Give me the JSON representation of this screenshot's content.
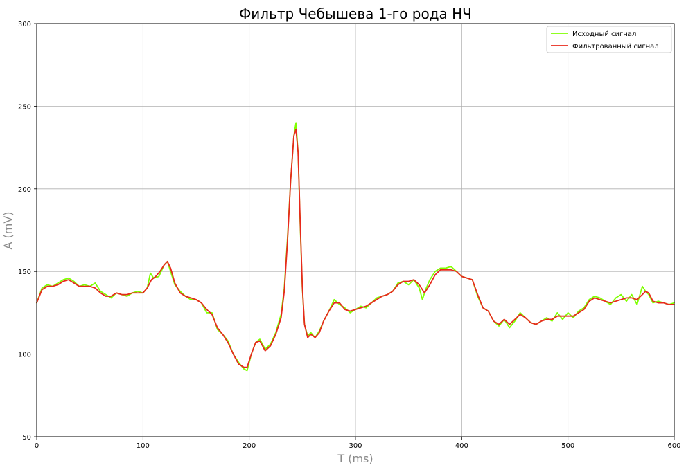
{
  "chart_data": {
    "type": "line",
    "title": "Фильтр Чебышева 1-го рода НЧ",
    "xlabel": "T (ms)",
    "ylabel": "A (mV)",
    "xlim": [
      0,
      600
    ],
    "ylim": [
      50,
      300
    ],
    "xticks": [
      0,
      100,
      200,
      300,
      400,
      500,
      600
    ],
    "yticks": [
      50,
      100,
      150,
      200,
      250,
      300
    ],
    "grid": true,
    "legend_position": "top-right",
    "series": [
      {
        "name": "Исходный сигнал",
        "color": "#7fff00",
        "x": [
          0,
          5,
          10,
          15,
          20,
          25,
          30,
          35,
          40,
          45,
          50,
          55,
          60,
          65,
          70,
          75,
          80,
          85,
          90,
          95,
          100,
          104,
          107,
          110,
          115,
          120,
          123,
          126,
          130,
          135,
          140,
          145,
          150,
          155,
          160,
          165,
          170,
          175,
          180,
          185,
          190,
          195,
          198,
          202,
          206,
          210,
          215,
          220,
          225,
          230,
          233,
          236,
          239,
          242,
          244,
          246,
          248,
          250,
          252,
          255,
          258,
          262,
          266,
          270,
          275,
          280,
          285,
          290,
          295,
          300,
          305,
          310,
          315,
          320,
          325,
          330,
          335,
          340,
          345,
          350,
          355,
          360,
          363,
          366,
          370,
          375,
          380,
          385,
          390,
          395,
          400,
          405,
          410,
          415,
          420,
          425,
          430,
          435,
          440,
          445,
          450,
          455,
          460,
          465,
          470,
          475,
          480,
          485,
          490,
          495,
          500,
          505,
          510,
          515,
          520,
          525,
          530,
          535,
          540,
          545,
          550,
          555,
          560,
          565,
          570,
          573,
          576,
          580,
          585,
          590,
          595,
          600
        ],
        "y": [
          131,
          140,
          142,
          141,
          143,
          145,
          146,
          144,
          141,
          142,
          141,
          143,
          138,
          136,
          134,
          137,
          136,
          135,
          137,
          138,
          137,
          140,
          149,
          146,
          147,
          154,
          156,
          150,
          142,
          138,
          135,
          133,
          133,
          131,
          125,
          125,
          115,
          112,
          108,
          100,
          95,
          91,
          90,
          100,
          107,
          109,
          103,
          106,
          113,
          124,
          140,
          170,
          205,
          232,
          240,
          222,
          178,
          140,
          118,
          111,
          113,
          110,
          114,
          120,
          126,
          133,
          130,
          128,
          125,
          127,
          129,
          128,
          131,
          134,
          135,
          136,
          138,
          143,
          144,
          142,
          145,
          140,
          133,
          139,
          145,
          150,
          152,
          152,
          153,
          150,
          147,
          146,
          145,
          135,
          128,
          126,
          120,
          117,
          121,
          116,
          120,
          125,
          122,
          119,
          118,
          120,
          122,
          120,
          125,
          121,
          125,
          122,
          126,
          128,
          133,
          135,
          134,
          132,
          130,
          134,
          136,
          132,
          136,
          130,
          141,
          138,
          136,
          131,
          132,
          131,
          130,
          131
        ]
      },
      {
        "name": "Фильтрованный сигнал",
        "color": "#e8291c",
        "x": [
          0,
          5,
          10,
          15,
          20,
          25,
          30,
          35,
          40,
          45,
          50,
          55,
          60,
          65,
          70,
          75,
          80,
          85,
          90,
          95,
          100,
          104,
          108,
          112,
          116,
          120,
          123,
          126,
          130,
          135,
          140,
          145,
          150,
          155,
          160,
          165,
          170,
          175,
          180,
          185,
          190,
          195,
          198,
          202,
          206,
          210,
          215,
          220,
          225,
          230,
          233,
          236,
          239,
          242,
          244,
          246,
          248,
          250,
          252,
          255,
          258,
          262,
          266,
          270,
          275,
          280,
          285,
          290,
          295,
          300,
          305,
          310,
          315,
          320,
          325,
          330,
          335,
          340,
          345,
          350,
          355,
          360,
          365,
          370,
          375,
          380,
          385,
          390,
          395,
          400,
          405,
          410,
          415,
          420,
          425,
          430,
          435,
          440,
          445,
          450,
          455,
          460,
          465,
          470,
          475,
          480,
          485,
          490,
          495,
          500,
          505,
          510,
          515,
          520,
          525,
          530,
          535,
          540,
          545,
          550,
          555,
          560,
          565,
          570,
          573,
          576,
          580,
          585,
          590,
          595,
          600
        ],
        "y": [
          131,
          139,
          141,
          141,
          142,
          144,
          145,
          143,
          141,
          141,
          141,
          140,
          137,
          135,
          135,
          137,
          136,
          136,
          137,
          137,
          137,
          140,
          145,
          147,
          150,
          154,
          156,
          152,
          143,
          137,
          135,
          134,
          133,
          131,
          127,
          124,
          116,
          112,
          107,
          100,
          94,
          92,
          92,
          100,
          107,
          108,
          102,
          105,
          112,
          122,
          138,
          168,
          205,
          232,
          236,
          222,
          180,
          141,
          118,
          110,
          112,
          110,
          113,
          120,
          126,
          131,
          131,
          127,
          126,
          127,
          128,
          129,
          131,
          133,
          135,
          136,
          138,
          142,
          144,
          144,
          145,
          142,
          137,
          142,
          148,
          151,
          151,
          151,
          150,
          147,
          146,
          145,
          136,
          128,
          126,
          120,
          118,
          121,
          118,
          121,
          124,
          122,
          119,
          118,
          120,
          121,
          121,
          123,
          123,
          123,
          123,
          125,
          127,
          132,
          134,
          133,
          132,
          131,
          132,
          133,
          134,
          134,
          133,
          136,
          138,
          137,
          132,
          131,
          131,
          130,
          130
        ]
      }
    ]
  }
}
